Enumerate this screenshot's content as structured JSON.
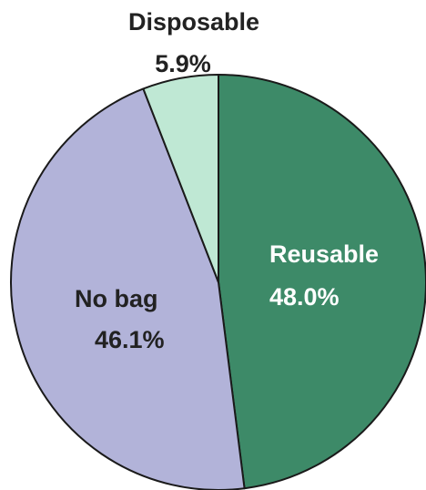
{
  "chart_data": {
    "type": "pie",
    "slices": [
      {
        "label": "Reusable",
        "value": 48.0,
        "value_label": "48.0%",
        "color": "#3d8a68",
        "label_color": "#ffffff",
        "label_position": "inside"
      },
      {
        "label": "No bag",
        "value": 46.1,
        "value_label": "46.1%",
        "color": "#b2b3d9",
        "label_color": "#222222",
        "label_position": "inside"
      },
      {
        "label": "Disposable",
        "value": 5.9,
        "value_label": "5.9%",
        "color": "#bfe8d4",
        "label_color": "#222222",
        "label_position": "outside"
      }
    ],
    "start_angle": "12 o'clock",
    "direction": "clockwise",
    "legend": "none",
    "border_color": "#1a1a1a"
  }
}
